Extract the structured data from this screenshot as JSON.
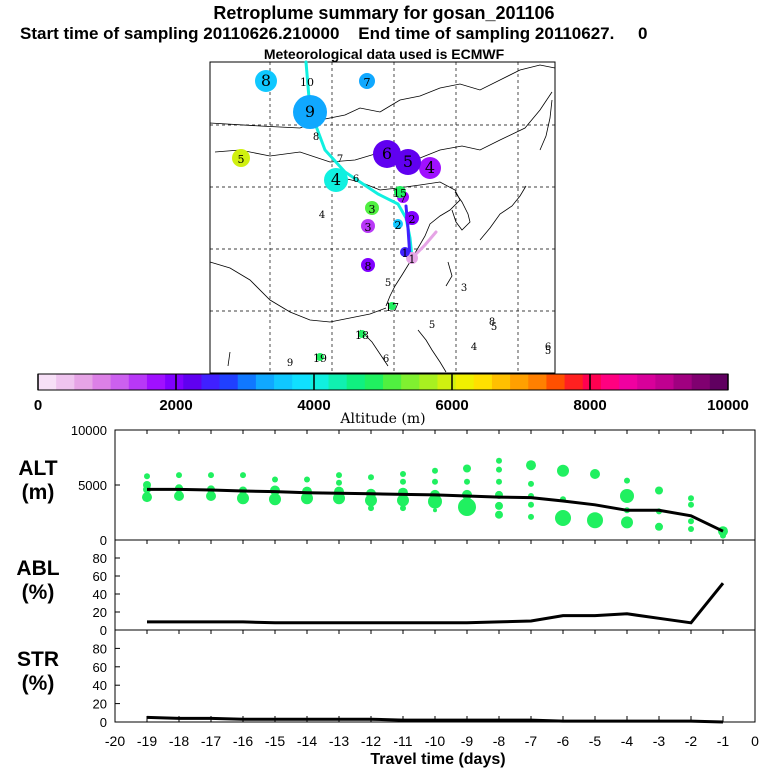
{
  "title": "Retroplume summary for gosan_201106",
  "subtitle": "Start time of sampling 20110626.210000    End time of sampling 20110627.     0",
  "subtitle2": "Meteorological data used is ECMWF",
  "colorbar": {
    "ticks": [
      "0",
      "2000",
      "4000",
      "6000",
      "8000",
      "10000"
    ],
    "label": "Altitude  (m)",
    "colors": [
      "#f7e0f7",
      "#efc4ef",
      "#e6a4e6",
      "#dc80e6",
      "#cc60ef",
      "#b838f7",
      "#a010ff",
      "#8000ff",
      "#6000f0",
      "#4020ff",
      "#2040ff",
      "#1078ff",
      "#10a8ff",
      "#10c8ff",
      "#10e0ff",
      "#10f0e0",
      "#10f0b0",
      "#10f080",
      "#20f060",
      "#50f040",
      "#80f030",
      "#a8f020",
      "#d0f010",
      "#f0f000",
      "#ffe000",
      "#ffc000",
      "#ffa000",
      "#ff8000",
      "#ff5000",
      "#ff2020",
      "#ff0050",
      "#ff0080",
      "#f000a0",
      "#d8009a",
      "#c00090",
      "#a00080",
      "#800070",
      "#600060"
    ]
  },
  "map": {
    "points": [
      {
        "label": "1",
        "color": "#e6a4e6",
        "size": 6
      },
      {
        "label": "1",
        "color": "#4020ff",
        "size": 5
      },
      {
        "label": "2",
        "color": "#8000ff",
        "size": 7
      },
      {
        "label": "2",
        "color": "#10c8ff",
        "size": 5
      },
      {
        "label": "3",
        "color": "#50f040",
        "size": 7
      },
      {
        "label": "3",
        "color": "#b838f7",
        "size": 7
      },
      {
        "label": "4",
        "color": "#a010ff",
        "size": 11
      },
      {
        "label": "4",
        "color": "#10f0e0",
        "size": 12
      },
      {
        "label": "5",
        "color": "#6000f0",
        "size": 13
      },
      {
        "label": "5",
        "color": "#d0f010",
        "size": 9
      },
      {
        "label": "6",
        "color": "#6000f0",
        "size": 14
      },
      {
        "label": "7",
        "color": "#10a8ff",
        "size": 8
      },
      {
        "label": "7",
        "color": "#a010ff",
        "size": 6
      },
      {
        "label": "8",
        "color": "#10c8ff",
        "size": 11
      },
      {
        "label": "8",
        "color": "#8000ff",
        "size": 7
      },
      {
        "label": "9",
        "color": "#10a8ff",
        "size": 17
      },
      {
        "label": "10",
        "color": "",
        "size": 0
      },
      {
        "label": "15",
        "color": "#20f060",
        "size": 6
      },
      {
        "label": "17",
        "color": "#20f060",
        "size": 4
      },
      {
        "label": "18",
        "color": "#20f060",
        "size": 4
      },
      {
        "label": "19",
        "color": "#20f060",
        "size": 4
      }
    ],
    "extra_labels": [
      "4",
      "6",
      "7",
      "8",
      "5",
      "3",
      "5",
      "6",
      "5",
      "4",
      "5",
      "9",
      "6",
      "8"
    ]
  },
  "chart_data": [
    {
      "type": "scatter",
      "title": "ALT (m)",
      "ylabel": "ALT\n(m)",
      "xlabel": "Travel time (days)",
      "ylim": [
        0,
        10000
      ],
      "yticks": [
        "0",
        "5000",
        "10000"
      ],
      "xlim": [
        -20,
        0
      ],
      "xticks": [
        "-20",
        "-19",
        "-18",
        "-17",
        "-16",
        "-15",
        "-14",
        "-13",
        "-12",
        "-11",
        "-10",
        "-9",
        "-8",
        "-7",
        "-6",
        "-5",
        "-4",
        "-3",
        "-2",
        "-1",
        "0"
      ],
      "line": {
        "x": [
          -19,
          -18,
          -17,
          -16,
          -15,
          -14,
          -13,
          -12,
          -11,
          -10,
          -9,
          -8,
          -7,
          -6,
          -5,
          -4,
          -3,
          -2,
          -1
        ],
        "y": [
          4600,
          4600,
          4550,
          4450,
          4400,
          4300,
          4250,
          4200,
          4150,
          4100,
          4000,
          3900,
          3850,
          3550,
          3200,
          2700,
          2700,
          2200,
          800
        ]
      },
      "points": [
        {
          "x": -19,
          "y": 5800,
          "s": 3
        },
        {
          "x": -19,
          "y": 5000,
          "s": 4
        },
        {
          "x": -19,
          "y": 4600,
          "s": 4
        },
        {
          "x": -19,
          "y": 3900,
          "s": 5
        },
        {
          "x": -18,
          "y": 5900,
          "s": 3
        },
        {
          "x": -18,
          "y": 4700,
          "s": 4
        },
        {
          "x": -18,
          "y": 4000,
          "s": 5
        },
        {
          "x": -17,
          "y": 5900,
          "s": 3
        },
        {
          "x": -17,
          "y": 4600,
          "s": 4
        },
        {
          "x": -17,
          "y": 4000,
          "s": 5
        },
        {
          "x": -16,
          "y": 5900,
          "s": 3
        },
        {
          "x": -16,
          "y": 4500,
          "s": 4
        },
        {
          "x": -16,
          "y": 3800,
          "s": 6
        },
        {
          "x": -15,
          "y": 5500,
          "s": 3
        },
        {
          "x": -15,
          "y": 4500,
          "s": 5
        },
        {
          "x": -15,
          "y": 3700,
          "s": 6
        },
        {
          "x": -14,
          "y": 5500,
          "s": 3
        },
        {
          "x": -14,
          "y": 4400,
          "s": 5
        },
        {
          "x": -14,
          "y": 3800,
          "s": 6
        },
        {
          "x": -13,
          "y": 5900,
          "s": 3
        },
        {
          "x": -13,
          "y": 5200,
          "s": 3
        },
        {
          "x": -13,
          "y": 4400,
          "s": 5
        },
        {
          "x": -13,
          "y": 3800,
          "s": 6
        },
        {
          "x": -12,
          "y": 5700,
          "s": 3
        },
        {
          "x": -12,
          "y": 4200,
          "s": 5
        },
        {
          "x": -12,
          "y": 3600,
          "s": 6
        },
        {
          "x": -12,
          "y": 2900,
          "s": 3
        },
        {
          "x": -11,
          "y": 6000,
          "s": 3
        },
        {
          "x": -11,
          "y": 5300,
          "s": 3
        },
        {
          "x": -11,
          "y": 4300,
          "s": 5
        },
        {
          "x": -11,
          "y": 3600,
          "s": 6
        },
        {
          "x": -11,
          "y": 2900,
          "s": 3
        },
        {
          "x": -10,
          "y": 6300,
          "s": 3
        },
        {
          "x": -10,
          "y": 5300,
          "s": 3
        },
        {
          "x": -10,
          "y": 4100,
          "s": 5
        },
        {
          "x": -10,
          "y": 3500,
          "s": 7
        },
        {
          "x": -10,
          "y": 2700,
          "s": 2
        },
        {
          "x": -9,
          "y": 6500,
          "s": 4
        },
        {
          "x": -9,
          "y": 5300,
          "s": 3
        },
        {
          "x": -9,
          "y": 4100,
          "s": 5
        },
        {
          "x": -9,
          "y": 3000,
          "s": 9
        },
        {
          "x": -8,
          "y": 7200,
          "s": 3
        },
        {
          "x": -8,
          "y": 6400,
          "s": 3
        },
        {
          "x": -8,
          "y": 5300,
          "s": 3
        },
        {
          "x": -8,
          "y": 4100,
          "s": 4
        },
        {
          "x": -8,
          "y": 3100,
          "s": 4
        },
        {
          "x": -8,
          "y": 2300,
          "s": 4
        },
        {
          "x": -7,
          "y": 6800,
          "s": 5
        },
        {
          "x": -7,
          "y": 5100,
          "s": 3
        },
        {
          "x": -7,
          "y": 4000,
          "s": 3
        },
        {
          "x": -7,
          "y": 3200,
          "s": 3
        },
        {
          "x": -7,
          "y": 2100,
          "s": 3
        },
        {
          "x": -6,
          "y": 6300,
          "s": 6
        },
        {
          "x": -6,
          "y": 3700,
          "s": 3
        },
        {
          "x": -6,
          "y": 2000,
          "s": 8
        },
        {
          "x": -5,
          "y": 6000,
          "s": 5
        },
        {
          "x": -5,
          "y": 1800,
          "s": 8
        },
        {
          "x": -4,
          "y": 5400,
          "s": 3
        },
        {
          "x": -4,
          "y": 4000,
          "s": 7
        },
        {
          "x": -4,
          "y": 2700,
          "s": 3
        },
        {
          "x": -4,
          "y": 1600,
          "s": 6
        },
        {
          "x": -3,
          "y": 4500,
          "s": 4
        },
        {
          "x": -3,
          "y": 2600,
          "s": 3
        },
        {
          "x": -3,
          "y": 1200,
          "s": 4
        },
        {
          "x": -2,
          "y": 3800,
          "s": 3
        },
        {
          "x": -2,
          "y": 3200,
          "s": 3
        },
        {
          "x": -2,
          "y": 1700,
          "s": 3
        },
        {
          "x": -2,
          "y": 1000,
          "s": 3
        },
        {
          "x": -1,
          "y": 800,
          "s": 5
        },
        {
          "x": -1,
          "y": 400,
          "s": 3
        }
      ]
    },
    {
      "type": "line",
      "title": "ABL (%)",
      "ylabel": "ABL\n(%)",
      "ylim": [
        0,
        100
      ],
      "yticks": [
        "0",
        "20",
        "40",
        "60",
        "80"
      ],
      "x": [
        -19,
        -18,
        -17,
        -16,
        -15,
        -14,
        -13,
        -12,
        -11,
        -10,
        -9,
        -8,
        -7,
        -6,
        -5,
        -4,
        -3,
        -2,
        -1
      ],
      "y": [
        9,
        9,
        9,
        9,
        8,
        8,
        8,
        8,
        8,
        8,
        8,
        9,
        10,
        16,
        16,
        18,
        13,
        8,
        52
      ]
    },
    {
      "type": "line",
      "title": "STR (%)",
      "ylabel": "STR\n(%)",
      "ylim": [
        0,
        100
      ],
      "yticks": [
        "0",
        "20",
        "40",
        "60",
        "80"
      ],
      "x": [
        -19,
        -18,
        -17,
        -16,
        -15,
        -14,
        -13,
        -12,
        -11,
        -10,
        -9,
        -8,
        -7,
        -6,
        -5,
        -4,
        -3,
        -2,
        -1
      ],
      "y": [
        5,
        4,
        4,
        3,
        3,
        3,
        3,
        3,
        2,
        2,
        2,
        2,
        2,
        1,
        1,
        1,
        1,
        1,
        0
      ]
    }
  ]
}
